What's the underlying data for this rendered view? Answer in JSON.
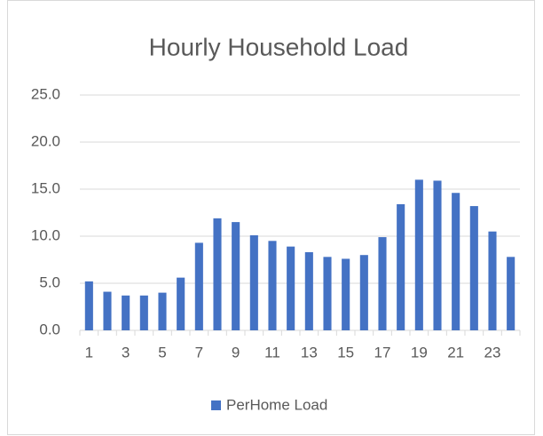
{
  "chart_data": {
    "type": "bar",
    "title": "Hourly Household Load",
    "categories": [
      1,
      null,
      3,
      null,
      5,
      null,
      7,
      null,
      9,
      null,
      11,
      null,
      13,
      null,
      15,
      null,
      17,
      null,
      19,
      null,
      21,
      null,
      23,
      null
    ],
    "series": [
      {
        "name": "PerHome Load",
        "color": "#4472c4",
        "values": [
          5.2,
          4.1,
          3.7,
          3.7,
          4.0,
          5.6,
          9.3,
          11.9,
          11.5,
          10.1,
          9.5,
          8.9,
          8.3,
          7.8,
          7.6,
          8.0,
          9.9,
          13.4,
          16.0,
          15.9,
          14.6,
          13.2,
          10.5,
          7.8
        ]
      }
    ],
    "ylim": [
      0,
      25
    ],
    "yticks": [
      {
        "value": 0,
        "label": "0.0"
      },
      {
        "value": 5,
        "label": "5.0"
      },
      {
        "value": 10,
        "label": "10.0"
      },
      {
        "value": 15,
        "label": "15.0"
      },
      {
        "value": 20,
        "label": "20.0"
      },
      {
        "value": 25,
        "label": "25.0"
      }
    ],
    "grid": true,
    "legend": "bottom"
  }
}
